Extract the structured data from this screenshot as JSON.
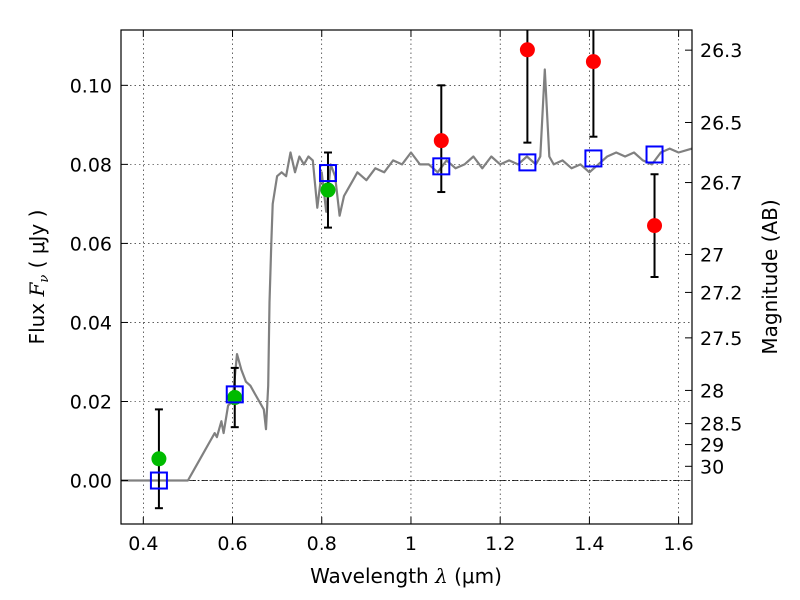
{
  "chart_data": {
    "type": "scatter",
    "xlabel": {
      "prefix": "Wavelength  ",
      "symbol": "λ",
      "suffix": " (μm)"
    },
    "ylabel": {
      "prefix": "Flux  ",
      "symbol": "F",
      "subscript": "ν",
      "suffix": "  ( μJy )"
    },
    "y2label": "Magnitude (AB)",
    "xlim": [
      0.35,
      1.63
    ],
    "ylim": [
      -0.011,
      0.114
    ],
    "x_ticks": [
      0.4,
      0.6,
      0.8,
      1.0,
      1.2,
      1.4,
      1.6
    ],
    "x_tick_labels": [
      "0.4",
      "0.6",
      "0.8",
      "1",
      "1.2",
      "1.4",
      "1.6"
    ],
    "y_ticks": [
      0.0,
      0.02,
      0.04,
      0.06,
      0.08,
      0.1
    ],
    "y_tick_labels": [
      "0.00",
      "0.02",
      "0.04",
      "0.06",
      "0.08",
      "0.10"
    ],
    "magnitude_ticks": [
      {
        "label": "26.3",
        "y": 0.1089
      },
      {
        "label": "26.5",
        "y": 0.0906
      },
      {
        "label": "26.7",
        "y": 0.0754
      },
      {
        "label": "27",
        "y": 0.0572
      },
      {
        "label": "27.2",
        "y": 0.0476
      },
      {
        "label": "27.5",
        "y": 0.0361
      },
      {
        "label": "28",
        "y": 0.0228
      },
      {
        "label": "28.5",
        "y": 0.0144
      },
      {
        "label": "29",
        "y": 0.0091
      },
      {
        "label": "30",
        "y": 0.0036
      }
    ],
    "grid": true,
    "colors": {
      "model": "#808080",
      "detected": "#00bb00",
      "observed": "#ff0000",
      "model_band": "#0000ff",
      "errorbar": "#000000"
    },
    "model_spectrum": {
      "x": [
        0.35,
        0.5,
        0.51,
        0.53,
        0.55,
        0.56,
        0.565,
        0.575,
        0.58,
        0.59,
        0.6,
        0.61,
        0.62,
        0.63,
        0.64,
        0.65,
        0.66,
        0.67,
        0.675,
        0.68,
        0.683,
        0.687,
        0.69,
        0.7,
        0.71,
        0.72,
        0.73,
        0.74,
        0.75,
        0.76,
        0.77,
        0.78,
        0.79,
        0.8,
        0.81,
        0.82,
        0.83,
        0.84,
        0.85,
        0.86,
        0.87,
        0.88,
        0.9,
        0.92,
        0.94,
        0.96,
        0.98,
        1.0,
        1.02,
        1.04,
        1.06,
        1.08,
        1.1,
        1.12,
        1.14,
        1.16,
        1.18,
        1.2,
        1.22,
        1.24,
        1.26,
        1.28,
        1.29,
        1.3,
        1.31,
        1.32,
        1.34,
        1.36,
        1.38,
        1.4,
        1.42,
        1.44,
        1.46,
        1.48,
        1.5,
        1.52,
        1.54,
        1.56,
        1.58,
        1.6,
        1.63
      ],
      "y": [
        0.0,
        0.0,
        0.002,
        0.006,
        0.01,
        0.012,
        0.011,
        0.015,
        0.012,
        0.019,
        0.02,
        0.032,
        0.028,
        0.025,
        0.024,
        0.022,
        0.02,
        0.018,
        0.013,
        0.024,
        0.045,
        0.06,
        0.07,
        0.077,
        0.078,
        0.077,
        0.083,
        0.078,
        0.082,
        0.08,
        0.082,
        0.081,
        0.069,
        0.078,
        0.068,
        0.08,
        0.077,
        0.067,
        0.072,
        0.074,
        0.076,
        0.078,
        0.076,
        0.079,
        0.078,
        0.081,
        0.08,
        0.083,
        0.08,
        0.08,
        0.078,
        0.081,
        0.079,
        0.08,
        0.082,
        0.079,
        0.082,
        0.08,
        0.081,
        0.08,
        0.082,
        0.08,
        0.082,
        0.104,
        0.082,
        0.08,
        0.081,
        0.079,
        0.08,
        0.078,
        0.08,
        0.082,
        0.083,
        0.082,
        0.083,
        0.081,
        0.08,
        0.083,
        0.084,
        0.083,
        0.084
      ]
    },
    "series": [
      {
        "marker": "circle",
        "color": "#00bb00",
        "points": [
          {
            "x": 0.435,
            "y": 0.0055,
            "yerr_low": 0.0125,
            "yerr_high": 0.0125
          },
          {
            "x": 0.605,
            "y": 0.021,
            "yerr_low": 0.0075,
            "yerr_high": 0.0075
          },
          {
            "x": 0.814,
            "y": 0.0735,
            "yerr_low": 0.0095,
            "yerr_high": 0.0095
          }
        ]
      },
      {
        "marker": "circle",
        "color": "#ff0000",
        "points": [
          {
            "x": 1.068,
            "y": 0.086,
            "yerr_low": 0.013,
            "yerr_high": 0.014
          },
          {
            "x": 1.261,
            "y": 0.109,
            "yerr_low": 0.0235,
            "yerr_high": 0.012
          },
          {
            "x": 1.409,
            "y": 0.106,
            "yerr_low": 0.019,
            "yerr_high": 0.01
          },
          {
            "x": 1.546,
            "y": 0.0645,
            "yerr_low": 0.013,
            "yerr_high": 0.013
          }
        ]
      },
      {
        "marker": "open-square",
        "color": "#0000ff",
        "points": [
          {
            "x": 0.435,
            "y": 0.0
          },
          {
            "x": 0.605,
            "y": 0.0218
          },
          {
            "x": 0.814,
            "y": 0.0778
          },
          {
            "x": 1.068,
            "y": 0.0795
          },
          {
            "x": 1.261,
            "y": 0.0805
          },
          {
            "x": 1.409,
            "y": 0.0815
          },
          {
            "x": 1.546,
            "y": 0.0825
          }
        ]
      }
    ]
  }
}
